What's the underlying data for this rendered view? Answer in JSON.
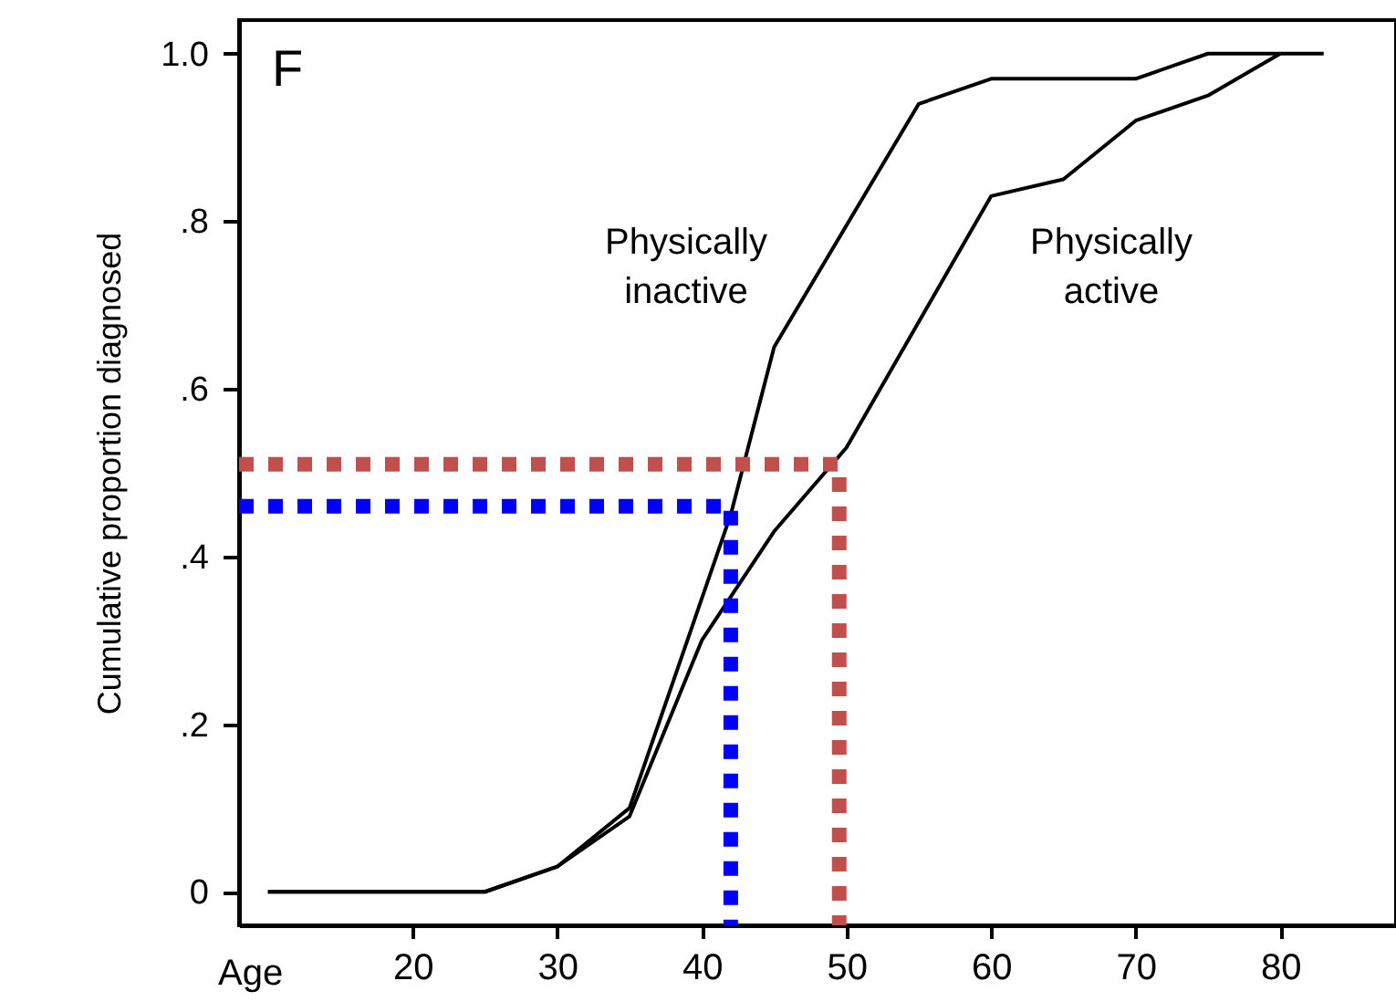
{
  "chart_data": {
    "type": "line",
    "xlabel": "Age",
    "ylabel": "Cumulative proportion diagnosed",
    "annotations": [
      "F"
    ],
    "xlim": [
      8,
      88
    ],
    "xticks": [
      20,
      30,
      40,
      50,
      60,
      70,
      80
    ],
    "ylim": [
      -0.04,
      1.04
    ],
    "yticks": [
      0,
      {
        "value": 0.2,
        "label": ".2"
      },
      {
        "value": 0.4,
        "label": ".4"
      },
      {
        "value": 0.6,
        "label": ".6"
      },
      {
        "value": 0.8,
        "label": ".8"
      },
      {
        "value": 1,
        "label": "1.0"
      }
    ],
    "grid": false,
    "legend": false,
    "marker": "none",
    "series": [
      {
        "name": "Physically inactive",
        "color": "#000000",
        "line_style": "solid",
        "x": [
          10,
          25,
          30,
          35,
          42,
          45,
          55,
          60,
          70,
          75,
          83
        ],
        "values": [
          0,
          0,
          0.03,
          0.1,
          0.45,
          0.65,
          0.94,
          0.97,
          0.97,
          1.0,
          1.0
        ]
      },
      {
        "name": "Physically active",
        "color": "#000000",
        "line_style": "solid",
        "x": [
          10,
          25,
          30,
          35,
          40,
          45,
          50,
          60,
          65,
          70,
          75,
          80
        ],
        "values": [
          0,
          0,
          0.03,
          0.09,
          0.3,
          0.43,
          0.53,
          0.83,
          0.85,
          0.92,
          0.95,
          1.0
        ]
      },
      {
        "color": "#0000ff",
        "line_style": "dotted",
        "x": [
          8,
          42,
          42
        ],
        "values": [
          0.46,
          0.46,
          -0.04
        ]
      },
      {
        "color": "#c0504d",
        "line_style": "dotted",
        "x": [
          8,
          49.5,
          49.5
        ],
        "values": [
          0.51,
          0.51,
          -0.04
        ]
      }
    ]
  }
}
